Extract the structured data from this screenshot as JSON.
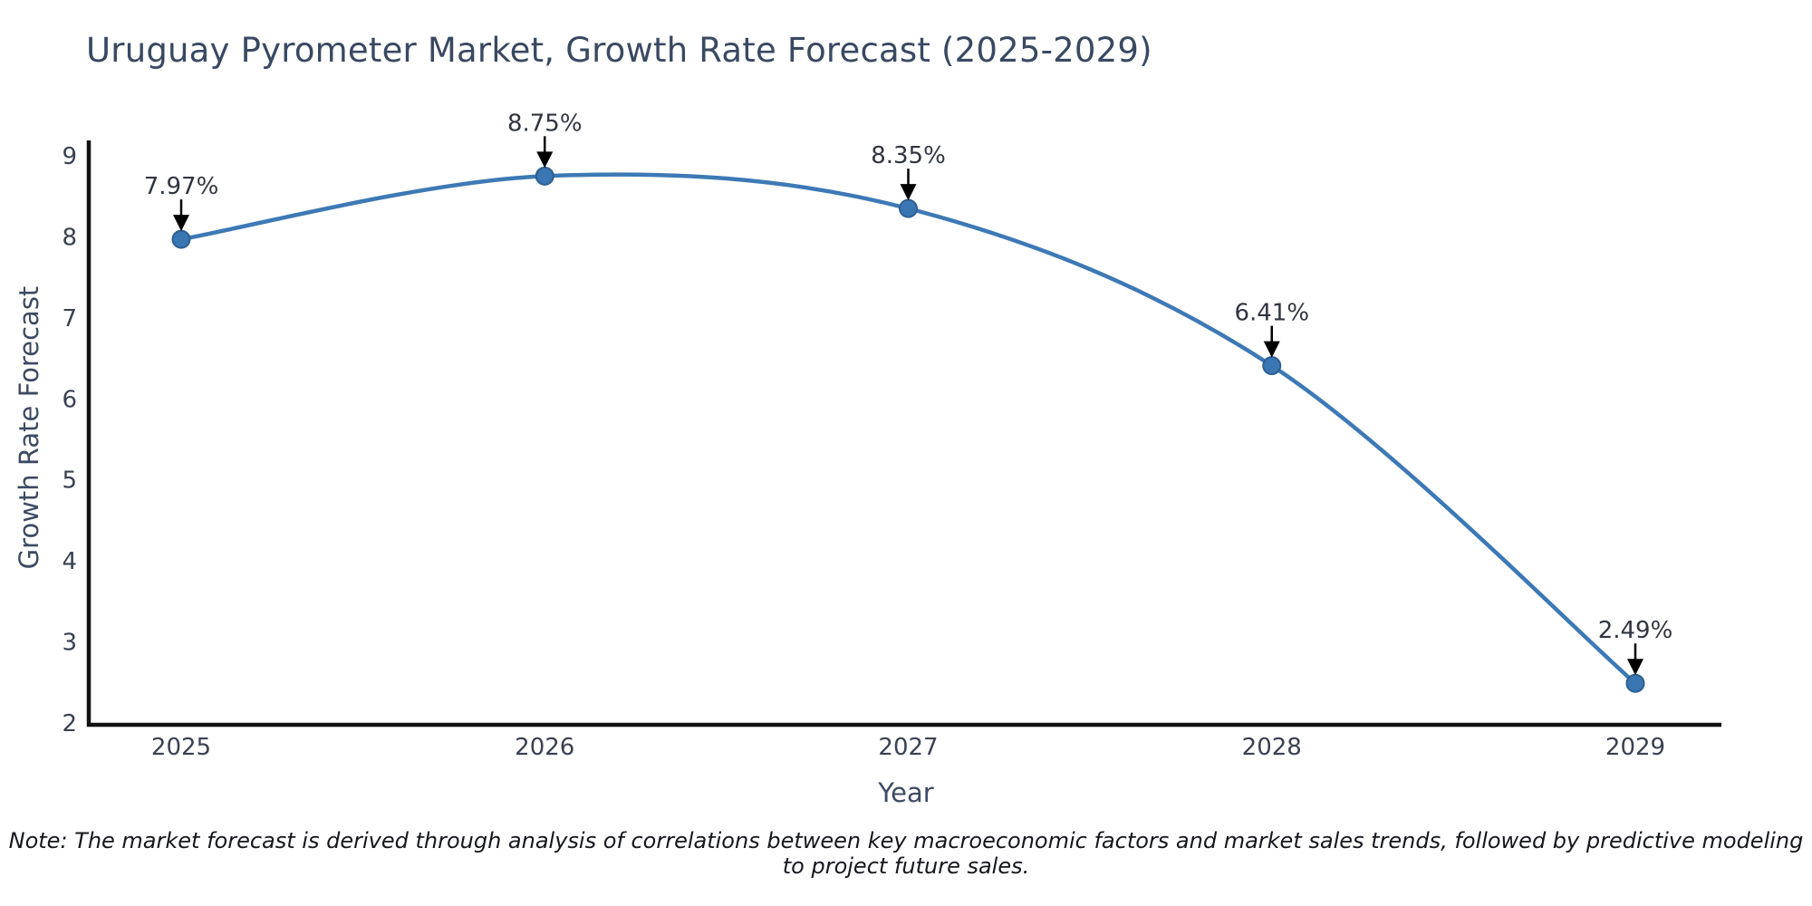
{
  "chart": {
    "footnote": "Note: The market forecast is derived through analysis of correlations between key macroeconomic factors and market sales trends, followed by predictive modeling to project future sales.",
    "colors": {
      "line": "#3d79b5",
      "marker_fill": "#3a76b2",
      "marker_edge": "#2d5f92",
      "axis": "#111111",
      "title_text": "#3a4862",
      "tick_text": "#3a4150",
      "axis_label_text": "#3d4a63",
      "annotation_text": "#31353f",
      "note_text": "#15171c",
      "arrow": "#000000"
    }
  },
  "chart_data": {
    "type": "line",
    "title": "Uruguay Pyrometer Market, Growth Rate Forecast (2025-2029)",
    "xlabel": "Year",
    "ylabel": "Growth Rate Forecast",
    "x": [
      "2025",
      "2026",
      "2027",
      "2028",
      "2029"
    ],
    "values": [
      7.97,
      8.75,
      8.35,
      6.41,
      2.49
    ],
    "point_labels": [
      "7.97%",
      "8.75%",
      "8.35%",
      "6.41%",
      "2.49%"
    ],
    "ylim": [
      2,
      9
    ],
    "yticks": [
      2,
      3,
      4,
      5,
      6,
      7,
      8,
      9
    ],
    "grid": false,
    "legend_position": "none",
    "line_style": "smooth",
    "marker": "circle",
    "annotation_style": "percent labels with black down-arrows above each data point"
  }
}
